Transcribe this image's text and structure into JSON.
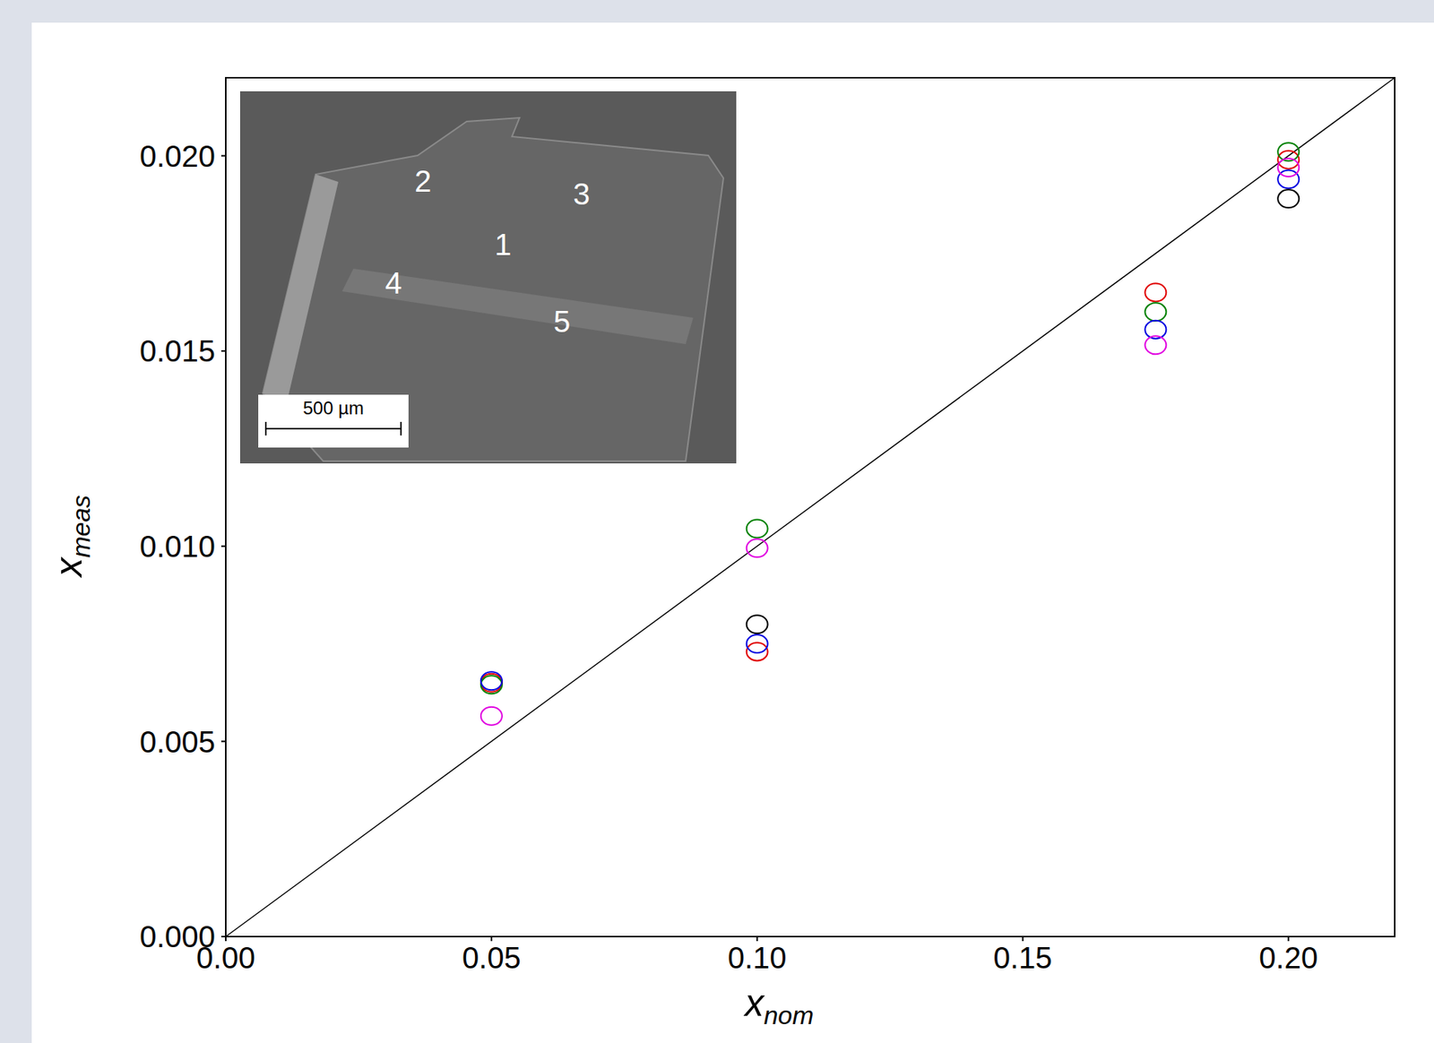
{
  "chart_data": {
    "type": "scatter",
    "x_label": "xnom",
    "y_label": "xmeas",
    "x": [
      0.05,
      0.1,
      0.175,
      0.2
    ],
    "series": [
      {
        "color": "#e00000",
        "marker": "circle_open",
        "values": [
          0.0065,
          0.0073,
          0.0165,
          0.0199
        ]
      },
      {
        "color": "#008000",
        "marker": "circle_open",
        "values": [
          0.00645,
          0.01045,
          0.016,
          0.0201
        ]
      },
      {
        "color": "#0000e0",
        "marker": "circle_open",
        "values": [
          0.00655,
          0.0075,
          0.01555,
          0.0194
        ]
      },
      {
        "color": "#e000e0",
        "marker": "circle_open",
        "values": [
          0.00565,
          0.00995,
          0.01515,
          0.0197
        ]
      },
      {
        "color": "#000000",
        "marker": "circle_open",
        "values": [
          null,
          0.008,
          null,
          0.0189
        ]
      }
    ],
    "reference_line": {
      "x": [
        0,
        0.22
      ],
      "y": [
        0,
        0.022
      ],
      "color": "#000000"
    },
    "xlim": [
      0,
      0.22
    ],
    "ylim": [
      0,
      0.022
    ],
    "xticks": [
      {
        "value": 0,
        "label": "0.00"
      },
      {
        "value": 0.05,
        "label": "0.05"
      },
      {
        "value": 0.1,
        "label": "0.10"
      },
      {
        "value": 0.15,
        "label": "0.15"
      },
      {
        "value": 0.2,
        "label": "0.20"
      }
    ],
    "yticks": [
      {
        "value": 0,
        "label": "0.000"
      },
      {
        "value": 0.005,
        "label": "0.005"
      },
      {
        "value": 0.01,
        "label": "0.010"
      },
      {
        "value": 0.015,
        "label": "0.015"
      },
      {
        "value": 0.02,
        "label": "0.020"
      }
    ],
    "grid": false,
    "inset": {
      "labels": [
        "2",
        "3",
        "1",
        "4",
        "5"
      ],
      "scale_bar": "500 µm"
    }
  }
}
